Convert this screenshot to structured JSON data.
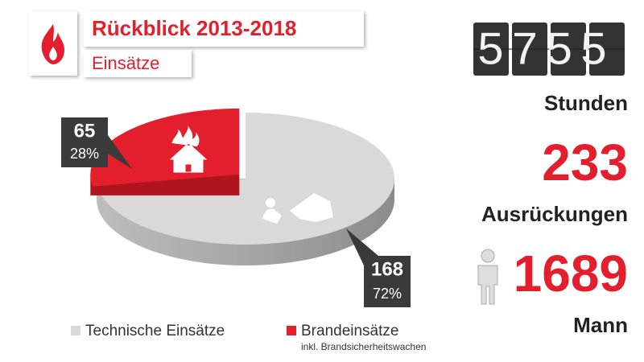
{
  "header": {
    "title": "Rückblick 2013-2018",
    "subtitle": "Einsätze"
  },
  "chart_data": {
    "type": "pie",
    "categories": [
      "Technische Einsätze",
      "Brandeinsätze"
    ],
    "values": [
      168,
      65
    ],
    "share_labels": [
      "72%",
      "28%"
    ],
    "colors": [
      "#d9d9d9",
      "#e31e2d"
    ],
    "legend_note": "inkl. Brandsicherheitswachen"
  },
  "stats": [
    {
      "value": 5755,
      "label": "Stunden"
    },
    {
      "value": 233,
      "label": "Ausrückungen"
    },
    {
      "value": 1689,
      "label": "Mann"
    }
  ]
}
